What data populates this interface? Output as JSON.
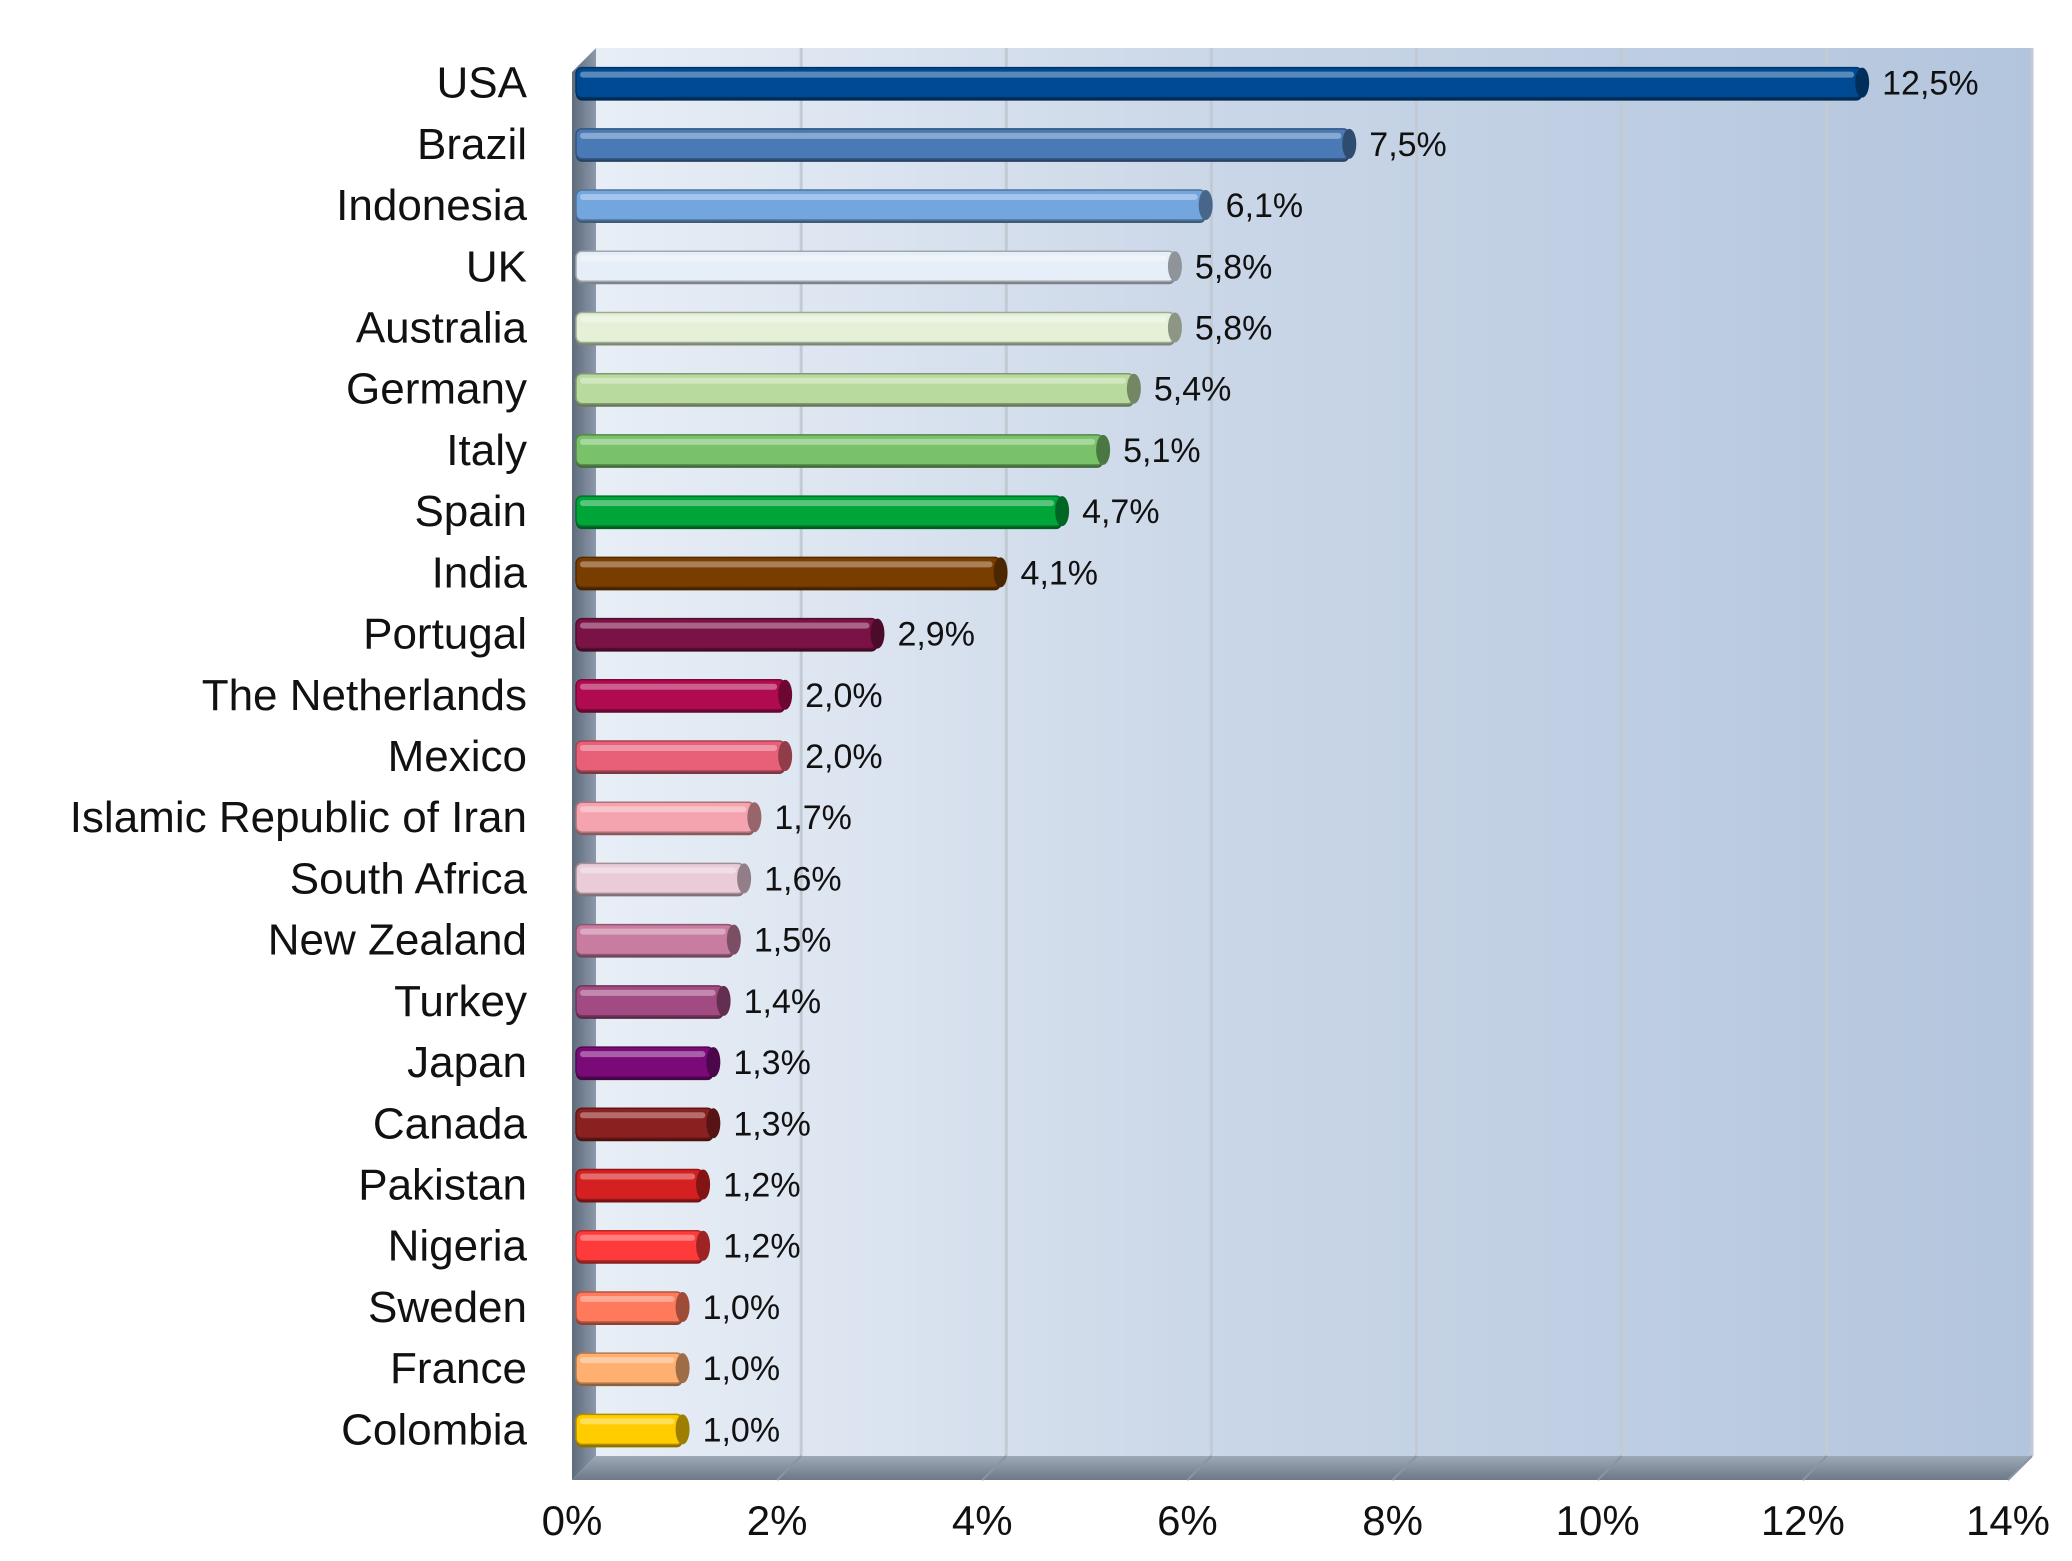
{
  "chart_data": {
    "type": "bar",
    "orientation": "horizontal",
    "title": "",
    "xlabel": "",
    "ylabel": "",
    "xlim": [
      0,
      14
    ],
    "x_ticks": [
      "0%",
      "2%",
      "4%",
      "6%",
      "8%",
      "10%",
      "12%",
      "14%"
    ],
    "grid": "vertical",
    "legend": "none",
    "categories": [
      "USA",
      "Brazil",
      "Indonesia",
      "UK",
      "Australia",
      "Germany",
      "Italy",
      "Spain",
      "India",
      "Portugal",
      "The Netherlands",
      "Mexico",
      "Islamic Republic of Iran",
      "South Africa",
      "New Zealand",
      "Turkey",
      "Japan",
      "Canada",
      "Pakistan",
      "Nigeria",
      "Sweden",
      "France",
      "Colombia"
    ],
    "values": [
      12.5,
      7.5,
      6.1,
      5.8,
      5.8,
      5.4,
      5.1,
      4.7,
      4.1,
      2.9,
      2.0,
      2.0,
      1.7,
      1.6,
      1.5,
      1.4,
      1.3,
      1.3,
      1.2,
      1.2,
      1.0,
      1.0,
      1.0
    ],
    "value_labels": [
      "12,5%",
      "7,5%",
      "6,1%",
      "5,8%",
      "5,8%",
      "5,4%",
      "5,1%",
      "4,7%",
      "4,1%",
      "2,9%",
      "2,0%",
      "2,0%",
      "1,7%",
      "1,6%",
      "1,5%",
      "1,4%",
      "1,3%",
      "1,3%",
      "1,2%",
      "1,2%",
      "1,0%",
      "1,0%",
      "1,0%"
    ],
    "bar_colors": [
      "#004A93",
      "#4A7AB5",
      "#73A5DE",
      "#E6EEF8",
      "#E4F1D6",
      "#B9DA9E",
      "#79C26A",
      "#00A53A",
      "#7A3D00",
      "#7A1245",
      "#B00B50",
      "#E86078",
      "#F5A3AE",
      "#EACBD8",
      "#C87DA0",
      "#A24A82",
      "#7A0A78",
      "#8B2020",
      "#D42020",
      "#FF3A3A",
      "#FF7A5A",
      "#FFB070",
      "#FFCC00"
    ],
    "colors": {
      "plot_background_left": "#E8EEF6",
      "plot_background_right": "#B4C6DE",
      "gridline": "#C2CAD4",
      "wall_side": "#7E8C9E"
    }
  }
}
